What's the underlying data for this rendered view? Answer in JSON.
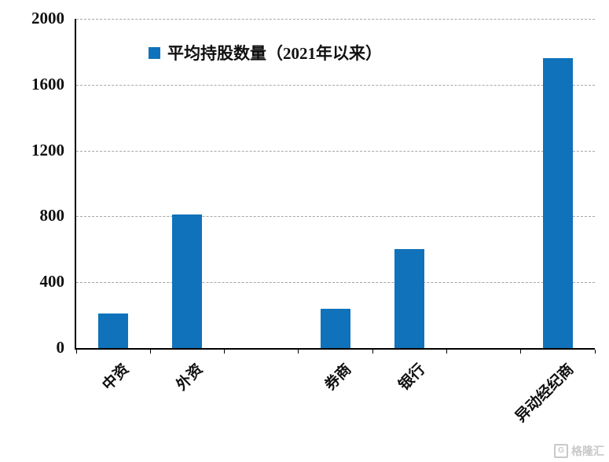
{
  "chart_data": {
    "type": "bar",
    "title": "",
    "legend": "平均持股数量（2021年以来）",
    "legend_position": "top-left-inside",
    "categories": [
      "中资",
      "外资",
      "",
      "券商",
      "银行",
      "",
      "异动经纪商"
    ],
    "values": [
      210,
      810,
      null,
      240,
      600,
      null,
      1760
    ],
    "xlabel": "",
    "ylabel": "",
    "ylim": [
      0,
      2000
    ],
    "yticks": [
      0,
      400,
      800,
      1200,
      1600,
      2000
    ],
    "grid": "horizontal-dashed",
    "bar_color": "#1072BA"
  },
  "colors": {
    "bar": "#1072BA",
    "grid": "#a6a6a6",
    "axis": "#000000",
    "text": "#101010",
    "watermark": "#c9c9c9"
  },
  "watermark": {
    "icon": "gelonghui-logo",
    "text": "格隆汇"
  }
}
